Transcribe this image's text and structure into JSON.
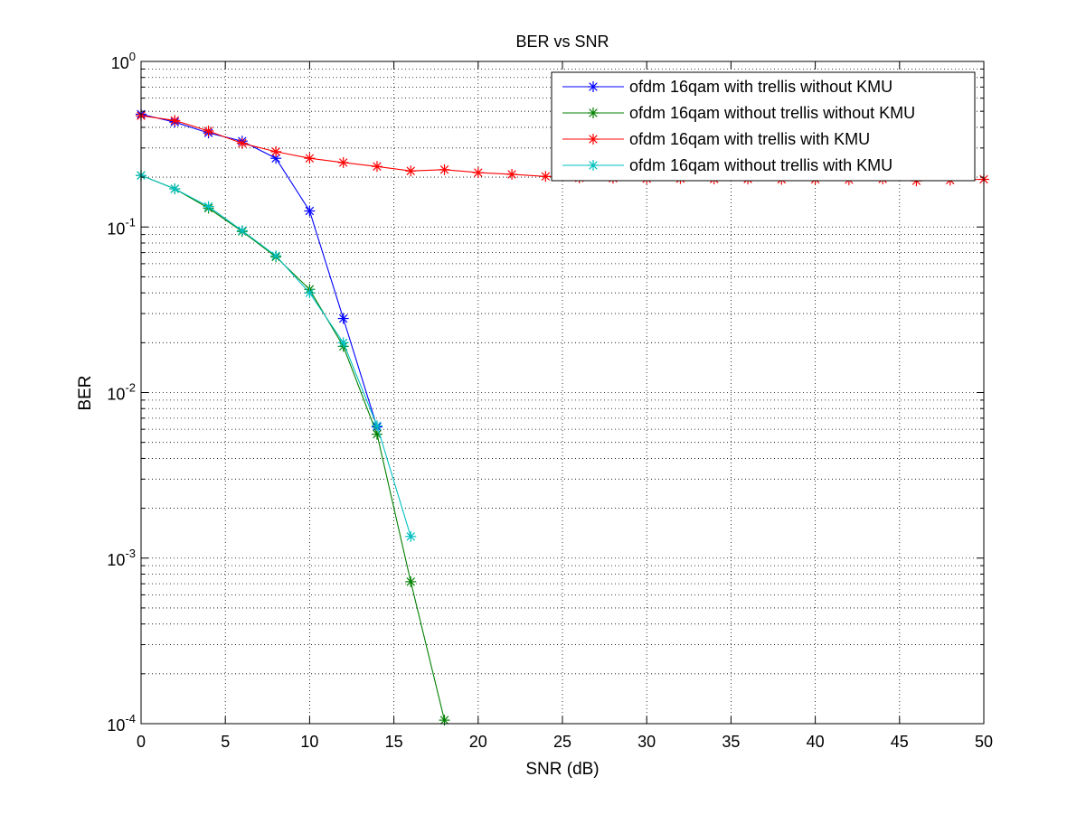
{
  "chart_data": {
    "type": "line",
    "title": "BER vs SNR",
    "xlabel": "SNR (dB)",
    "ylabel": "BER",
    "xlim": [
      0,
      50
    ],
    "ylim": [
      0.0001,
      1
    ],
    "yscale": "log",
    "grid": true,
    "legend_position": "top-right",
    "x_ticks": [
      "0",
      "5",
      "10",
      "15",
      "20",
      "25",
      "30",
      "35",
      "40",
      "45",
      "50"
    ],
    "y_ticks": [
      {
        "base": "10",
        "exp": "0"
      },
      {
        "base": "10",
        "exp": "-1"
      },
      {
        "base": "10",
        "exp": "-2"
      },
      {
        "base": "10",
        "exp": "-3"
      },
      {
        "base": "10",
        "exp": "-4"
      }
    ],
    "series": [
      {
        "name": "ofdm 16qam with trellis without KMU",
        "color": "#0000ff",
        "x": [
          0,
          2,
          4,
          6,
          8,
          10,
          12,
          14
        ],
        "y": [
          0.48,
          0.43,
          0.37,
          0.33,
          0.26,
          0.125,
          0.028,
          0.0062
        ]
      },
      {
        "name": "ofdm 16qam without trellis without KMU",
        "color": "#008000",
        "x": [
          0,
          2,
          4,
          6,
          8,
          10,
          12,
          14,
          16,
          18
        ],
        "y": [
          0.205,
          0.17,
          0.13,
          0.094,
          0.066,
          0.042,
          0.019,
          0.0056,
          0.00072,
          0.000105
        ]
      },
      {
        "name": "ofdm 16qam with trellis with KMU",
        "color": "#ff0000",
        "x": [
          0,
          2,
          4,
          6,
          8,
          10,
          12,
          14,
          16,
          18,
          20,
          22,
          24,
          26,
          28,
          30,
          32,
          34,
          36,
          38,
          40,
          42,
          44,
          46,
          48,
          50
        ],
        "y": [
          0.47,
          0.44,
          0.38,
          0.32,
          0.285,
          0.26,
          0.245,
          0.232,
          0.218,
          0.222,
          0.213,
          0.208,
          0.202,
          0.198,
          0.197,
          0.196,
          0.196,
          0.195,
          0.195,
          0.194,
          0.194,
          0.193,
          0.195,
          0.19,
          0.192,
          0.194
        ]
      },
      {
        "name": "ofdm 16qam without trellis with KMU",
        "color": "#00bfbf",
        "x": [
          0,
          2,
          4,
          6,
          8,
          10,
          12,
          14,
          16
        ],
        "y": [
          0.205,
          0.17,
          0.133,
          0.095,
          0.067,
          0.04,
          0.02,
          0.0063,
          0.00135
        ]
      }
    ]
  }
}
